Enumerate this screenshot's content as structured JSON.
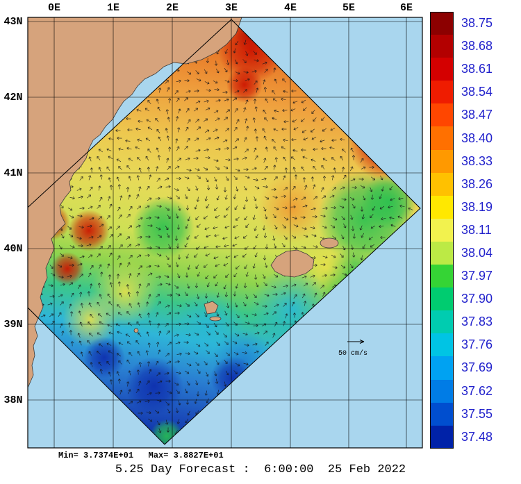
{
  "axes": {
    "top": [
      "0E",
      "1E",
      "2E",
      "3E",
      "4E",
      "5E",
      "6E"
    ],
    "left": [
      "43N",
      "42N",
      "41N",
      "40N",
      "39N",
      "38N"
    ]
  },
  "colorbar": {
    "bands": [
      {
        "label": "38.75",
        "color": "#8c0000"
      },
      {
        "label": "38.68",
        "color": "#b30000"
      },
      {
        "label": "38.61",
        "color": "#d40000"
      },
      {
        "label": "38.54",
        "color": "#ef1c00"
      },
      {
        "label": "38.47",
        "color": "#ff4600"
      },
      {
        "label": "38.40",
        "color": "#ff7000"
      },
      {
        "label": "38.33",
        "color": "#ff9900"
      },
      {
        "label": "38.26",
        "color": "#ffc100"
      },
      {
        "label": "38.19",
        "color": "#ffe800"
      },
      {
        "label": "38.11",
        "color": "#f2f24e"
      },
      {
        "label": "38.04",
        "color": "#bcea45"
      },
      {
        "label": "37.97",
        "color": "#35d435"
      },
      {
        "label": "37.90",
        "color": "#00cc70"
      },
      {
        "label": "37.83",
        "color": "#00ccb0"
      },
      {
        "label": "37.76",
        "color": "#00c4e4"
      },
      {
        "label": "37.69",
        "color": "#00a2f2"
      },
      {
        "label": "37.62",
        "color": "#007ce6"
      },
      {
        "label": "37.55",
        "color": "#004ecf"
      },
      {
        "label": "37.48",
        "color": "#0022a8"
      }
    ]
  },
  "annotations": {
    "minmax": "Min= 3.7374E+01   Max= 3.8827E+01",
    "caption": "5.25 Day Forecast :  6:00:00  25 Feb 2022",
    "vector_scale_label": "50 cm/s"
  },
  "colors": {
    "sea": "#a9d6ee",
    "land": "#d6a37c",
    "tick_label": "#000000",
    "colorbar_label": "#2222cc"
  },
  "chart_data": {
    "type": "heatmap",
    "subtype": "geographic scalar field with current-vector quiver overlay on rotated model domain",
    "title": "5.25 Day Forecast :  6:00:00  25 Feb 2022",
    "x_ticks": [
      "0E",
      "1E",
      "2E",
      "3E",
      "4E",
      "5E",
      "6E"
    ],
    "y_ticks": [
      "43N",
      "42N",
      "41N",
      "40N",
      "39N",
      "38N"
    ],
    "colorbar_levels": [
      38.75,
      38.68,
      38.61,
      38.54,
      38.47,
      38.4,
      38.33,
      38.26,
      38.19,
      38.11,
      38.04,
      37.97,
      37.9,
      37.83,
      37.76,
      37.69,
      37.62,
      37.55,
      37.48
    ],
    "field_min_label": "Min= 3.7374E+01",
    "field_max_label": "Max= 3.8827E+01",
    "vector_scale": "50 cm/s",
    "legend_position": "right",
    "grid": true
  }
}
